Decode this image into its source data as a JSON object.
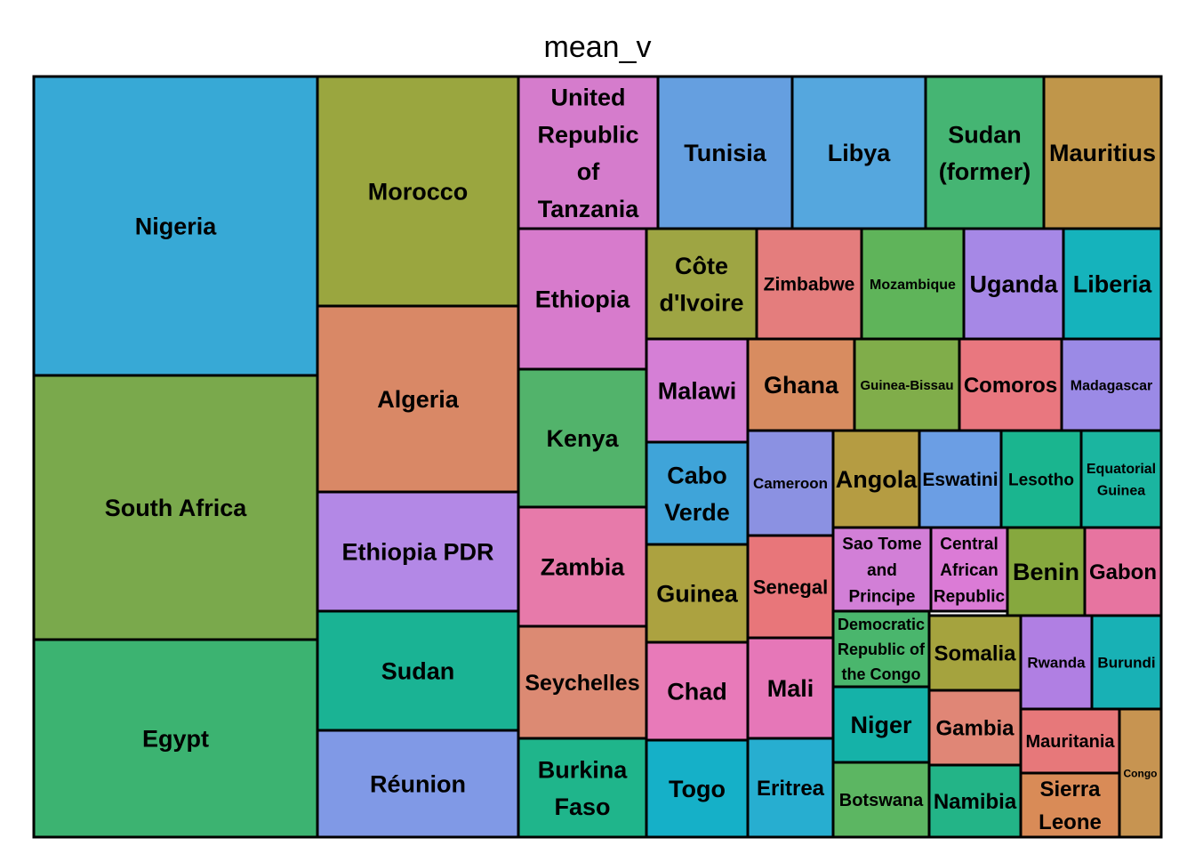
{
  "chart_data": {
    "type": "treemap",
    "title": "mean_v",
    "tiles": [
      {
        "label": "Nigeria",
        "color": "#37a9d6"
      },
      {
        "label": "South Africa",
        "color": "#7aa94c"
      },
      {
        "label": "Egypt",
        "color": "#3cb371"
      },
      {
        "label": "Morocco",
        "color": "#9aa63f"
      },
      {
        "label": "Algeria",
        "color": "#d98866"
      },
      {
        "label": "Ethiopia PDR",
        "color": "#b388e6"
      },
      {
        "label": "Sudan",
        "color": "#1ab394"
      },
      {
        "label": "Réunion",
        "color": "#8099e6"
      },
      {
        "label": "United Republic of Tanzania",
        "color": "#d57ccc"
      },
      {
        "label": "Tunisia",
        "color": "#659fe0"
      },
      {
        "label": "Libya",
        "color": "#55a7de"
      },
      {
        "label": "Sudan (former)",
        "color": "#45b573"
      },
      {
        "label": "Mauritius",
        "color": "#c0964a"
      },
      {
        "label": "Ethiopia",
        "color": "#d77bcc"
      },
      {
        "label": "Kenya",
        "color": "#52b36b"
      },
      {
        "label": "Zambia",
        "color": "#e77aaa"
      },
      {
        "label": "Seychelles",
        "color": "#dc8a73"
      },
      {
        "label": "Burkina Faso",
        "color": "#1fb58b"
      },
      {
        "label": "Côte d'Ivoire",
        "color": "#9ea543"
      },
      {
        "label": "Zimbabwe",
        "color": "#e47d7d"
      },
      {
        "label": "Mozambique",
        "color": "#5fb45a"
      },
      {
        "label": "Uganda",
        "color": "#a688e6"
      },
      {
        "label": "Liberia",
        "color": "#15b3bc"
      },
      {
        "label": "Malawi",
        "color": "#d57fd6"
      },
      {
        "label": "Ghana",
        "color": "#d88c60"
      },
      {
        "label": "Guinea-Bissau",
        "color": "#80ad4a"
      },
      {
        "label": "Comoros",
        "color": "#e9777f"
      },
      {
        "label": "Madagascar",
        "color": "#9b8ae6"
      },
      {
        "label": "Cabo Verde",
        "color": "#3fa4d9"
      },
      {
        "label": "Cameroon",
        "color": "#8b91e2"
      },
      {
        "label": "Angola",
        "color": "#b59c42"
      },
      {
        "label": "Eswatini",
        "color": "#6b9ee4"
      },
      {
        "label": "Lesotho",
        "color": "#1ab58f"
      },
      {
        "label": "Equatorial Guinea",
        "color": "#1bb5a0"
      },
      {
        "label": "Guinea",
        "color": "#aca240"
      },
      {
        "label": "Senegal",
        "color": "#e8767a"
      },
      {
        "label": "Sao Tome and Principe",
        "color": "#d27fd7"
      },
      {
        "label": "Central African Republic",
        "color": "#db7bd6"
      },
      {
        "label": "Benin",
        "color": "#86a83e"
      },
      {
        "label": "Gabon",
        "color": "#e774a0"
      },
      {
        "label": "Chad",
        "color": "#e87ab9"
      },
      {
        "label": "Mali",
        "color": "#e677b8"
      },
      {
        "label": "Democratic Republic of the Congo",
        "color": "#4ab66d"
      },
      {
        "label": "Somalia",
        "color": "#a5a33e"
      },
      {
        "label": "Rwanda",
        "color": "#b07fe3"
      },
      {
        "label": "Burundi",
        "color": "#18b1b5"
      },
      {
        "label": "Niger",
        "color": "#15b2a8"
      },
      {
        "label": "Gambia",
        "color": "#e08676"
      },
      {
        "label": "Mauritania",
        "color": "#e7787a"
      },
      {
        "label": "Congo",
        "color": "#c79451"
      },
      {
        "label": "Togo",
        "color": "#15b0c8"
      },
      {
        "label": "Eritrea",
        "color": "#27aed0"
      },
      {
        "label": "Botswana",
        "color": "#5cb662"
      },
      {
        "label": "Namibia",
        "color": "#23b487"
      },
      {
        "label": "Sierra Leone",
        "color": "#d98b57"
      }
    ]
  }
}
